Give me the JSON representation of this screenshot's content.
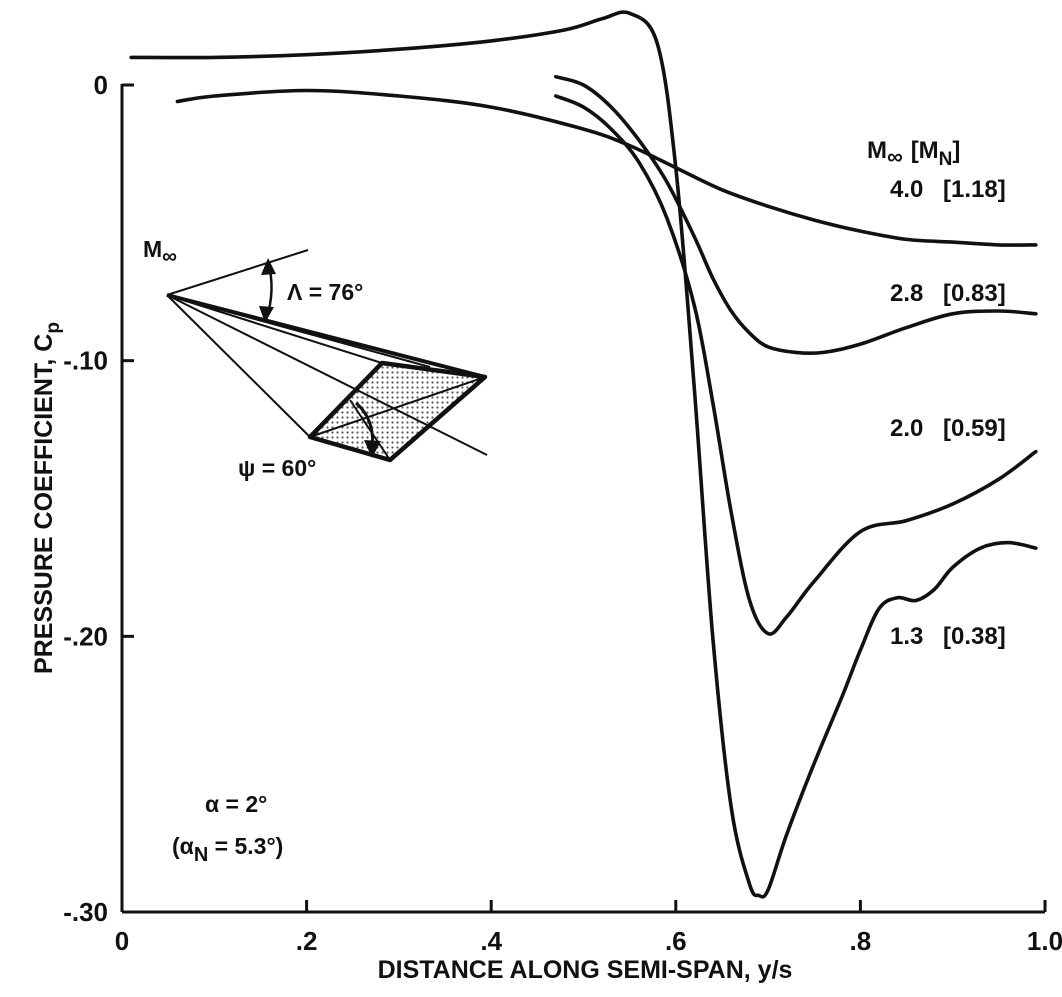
{
  "chart_data": {
    "type": "line",
    "xlabel": "DISTANCE ALONG SEMI-SPAN, y/s",
    "ylabel": "PRESSURE COEFFICIENT, C",
    "ylabel_sub": "p",
    "xlim": [
      0,
      1.0
    ],
    "ylim": [
      -0.3,
      0.03
    ],
    "x_ticks": [
      {
        "value": 0,
        "label": "0"
      },
      {
        "value": 0.2,
        "label": ".2"
      },
      {
        "value": 0.4,
        "label": ".4"
      },
      {
        "value": 0.6,
        "label": ".6"
      },
      {
        "value": 0.8,
        "label": ".8"
      },
      {
        "value": 1.0,
        "label": "1.0"
      }
    ],
    "y_ticks": [
      {
        "value": 0,
        "label": "0"
      },
      {
        "value": -0.1,
        "label": "-.10"
      },
      {
        "value": -0.2,
        "label": "-.20"
      },
      {
        "value": -0.3,
        "label": "-.30"
      }
    ],
    "grid": false,
    "legend_header": {
      "main": "M",
      "sub_main": "∞",
      "bracket_open": "[M",
      "sub_n": "N",
      "bracket_close": "]"
    },
    "series": [
      {
        "label_mach": "4.0",
        "label_bracket": "[1.18]",
        "x": [
          0.06,
          0.1,
          0.2,
          0.3,
          0.4,
          0.5,
          0.55,
          0.6,
          0.65,
          0.7,
          0.75,
          0.8,
          0.85,
          0.9,
          0.95,
          0.99
        ],
        "y": [
          -0.006,
          -0.004,
          -0.002,
          -0.004,
          -0.008,
          -0.016,
          -0.022,
          -0.03,
          -0.038,
          -0.044,
          -0.049,
          -0.053,
          -0.056,
          -0.057,
          -0.058,
          -0.058
        ]
      },
      {
        "label_mach": "2.8",
        "label_bracket": "[0.83]",
        "x": [
          0.47,
          0.5,
          0.53,
          0.56,
          0.59,
          0.62,
          0.64,
          0.66,
          0.68,
          0.7,
          0.73,
          0.76,
          0.8,
          0.85,
          0.9,
          0.95,
          0.99
        ],
        "y": [
          0.003,
          0.0,
          -0.008,
          -0.02,
          -0.035,
          -0.055,
          -0.07,
          -0.082,
          -0.09,
          -0.095,
          -0.097,
          -0.097,
          -0.094,
          -0.088,
          -0.083,
          -0.082,
          -0.083
        ]
      },
      {
        "label_mach": "2.0",
        "label_bracket": "[0.59]",
        "x": [
          0.47,
          0.5,
          0.53,
          0.56,
          0.59,
          0.62,
          0.64,
          0.66,
          0.68,
          0.7,
          0.72,
          0.75,
          0.8,
          0.85,
          0.9,
          0.95,
          0.99
        ],
        "y": [
          -0.004,
          -0.008,
          -0.016,
          -0.028,
          -0.048,
          -0.08,
          -0.115,
          -0.155,
          -0.187,
          -0.199,
          -0.193,
          -0.18,
          -0.162,
          -0.158,
          -0.152,
          -0.143,
          -0.133
        ]
      },
      {
        "label_mach": "1.3",
        "label_bracket": "[0.38]",
        "x": [
          0.01,
          0.1,
          0.2,
          0.3,
          0.4,
          0.48,
          0.52,
          0.55,
          0.58,
          0.6,
          0.62,
          0.64,
          0.66,
          0.68,
          0.69,
          0.7,
          0.72,
          0.75,
          0.78,
          0.8,
          0.82,
          0.84,
          0.86,
          0.88,
          0.9,
          0.93,
          0.96,
          0.99
        ],
        "y": [
          0.01,
          0.01,
          0.011,
          0.013,
          0.016,
          0.02,
          0.024,
          0.026,
          0.015,
          -0.03,
          -0.11,
          -0.2,
          -0.262,
          -0.29,
          -0.294,
          -0.292,
          -0.272,
          -0.246,
          -0.222,
          -0.205,
          -0.19,
          -0.186,
          -0.187,
          -0.183,
          -0.175,
          -0.168,
          -0.166,
          -0.168
        ]
      }
    ],
    "inset": {
      "mach_label": "M",
      "mach_sub": "∞",
      "sweep_label": "Λ = 76°",
      "psi_label": "ψ = 60°"
    },
    "annotations": {
      "alpha": "α = 2°",
      "alpha_n_open": "(α",
      "alpha_n_sub": "N",
      "alpha_n_close": " = 5.3°)"
    }
  }
}
